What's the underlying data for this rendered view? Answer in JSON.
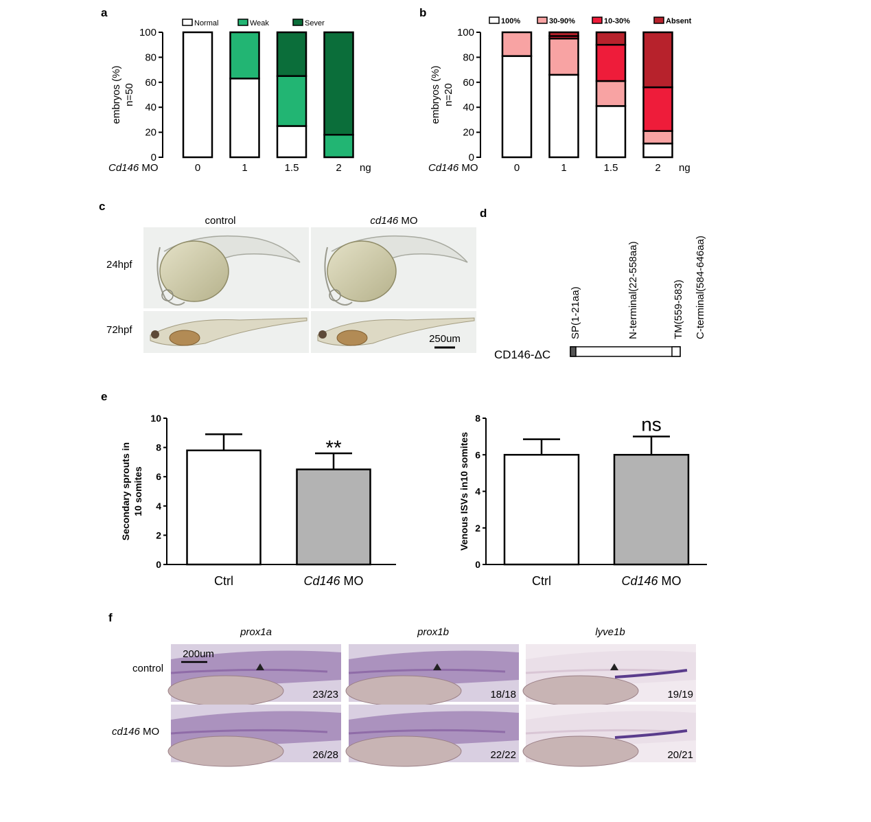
{
  "panels": {
    "a": "a",
    "b": "b",
    "c": "c",
    "d": "d",
    "e": "e",
    "f": "f"
  },
  "chart_data": [
    {
      "id": "a",
      "type": "bar",
      "stacked": true,
      "ylabel": [
        "embryos (%)",
        "n=50"
      ],
      "categories": [
        "0",
        "1",
        "1.5",
        "2"
      ],
      "xprefix_italic": "Cd146",
      "xprefix": " MO",
      "xunit": "ng",
      "ylim": [
        0,
        100
      ],
      "yticks": [
        0,
        20,
        40,
        60,
        80,
        100
      ],
      "legend": {
        "position": "top",
        "items": [
          {
            "name": "Normal",
            "color": "#ffffff"
          },
          {
            "name": "Weak",
            "color": "#22b573"
          },
          {
            "name": "Sever",
            "color": "#0b6e3a"
          }
        ]
      },
      "series": [
        {
          "name": "Normal",
          "values": [
            100,
            63,
            25,
            0
          ]
        },
        {
          "name": "Weak",
          "values": [
            0,
            37,
            40,
            18
          ]
        },
        {
          "name": "Sever",
          "values": [
            0,
            0,
            35,
            82
          ]
        }
      ]
    },
    {
      "id": "b",
      "type": "bar",
      "stacked": true,
      "ylabel": [
        "embryos (%)",
        "n=20"
      ],
      "categories": [
        "0",
        "1",
        "1.5",
        "2"
      ],
      "xprefix_italic": "Cd146",
      "xprefix": " MO",
      "xunit": "ng",
      "ylim": [
        0,
        100
      ],
      "yticks": [
        0,
        20,
        40,
        60,
        80,
        100
      ],
      "legend": {
        "position": "top",
        "items": [
          {
            "name": "100%",
            "color": "#ffffff"
          },
          {
            "name": "30-90%",
            "color": "#f8a3a3"
          },
          {
            "name": "10-30%",
            "color": "#ee1c3a"
          },
          {
            "name": "Absent",
            "color": "#b7222c"
          }
        ]
      },
      "series": [
        {
          "name": "100%",
          "values": [
            81,
            66,
            41,
            11
          ]
        },
        {
          "name": "30-90%",
          "values": [
            19,
            29,
            20,
            10
          ]
        },
        {
          "name": "10-30%",
          "values": [
            0,
            2,
            29,
            35
          ]
        },
        {
          "name": "Absent",
          "values": [
            0,
            3,
            10,
            44
          ]
        }
      ]
    },
    {
      "id": "e1",
      "type": "bar",
      "ylabel": [
        "Secondary sprouts in",
        "10 somites"
      ],
      "categories": [
        "Ctrl",
        "Cd146 MO"
      ],
      "category_parts": [
        [
          "",
          "Ctrl"
        ],
        [
          "Cd146",
          " MO"
        ]
      ],
      "values": [
        7.8,
        6.5
      ],
      "errors": [
        1.1,
        1.1
      ],
      "colors": [
        "#ffffff",
        "#b3b3b3"
      ],
      "ylim": [
        0,
        10
      ],
      "yticks": [
        0,
        2,
        4,
        6,
        8,
        10
      ],
      "significance": [
        "",
        "**"
      ]
    },
    {
      "id": "e2",
      "type": "bar",
      "ylabel": [
        "Venous ISVs in10 somites"
      ],
      "categories": [
        "Ctrl",
        "Cd146 MO"
      ],
      "category_parts": [
        [
          "",
          "Ctrl"
        ],
        [
          "Cd146",
          " MO"
        ]
      ],
      "values": [
        6.0,
        6.0
      ],
      "errors": [
        0.85,
        1.0
      ],
      "colors": [
        "#ffffff",
        "#b3b3b3"
      ],
      "ylim": [
        0,
        8
      ],
      "yticks": [
        0,
        2,
        4,
        6,
        8
      ],
      "significance": [
        "",
        "ns"
      ]
    }
  ],
  "panel_c": {
    "columns": [
      {
        "label": "control"
      },
      {
        "label_italic": "cd146",
        "label": " MO"
      }
    ],
    "rows": [
      "24hpf",
      "72hpf"
    ],
    "scale_bar": "250um"
  },
  "panel_d": {
    "construct": "CD146-ΔC",
    "domains": [
      "SP(1-21aa)",
      "N-terminal(22-558aa)",
      "TM(559-583)",
      "C-terminal(584-646aa)"
    ]
  },
  "panel_f": {
    "genes": [
      "prox1a",
      "prox1b",
      "lyve1b"
    ],
    "rows": [
      {
        "label": "control"
      },
      {
        "label_italic": "cd146",
        "label": " MO"
      }
    ],
    "scale_bar": "200um",
    "counts": [
      [
        "23/23",
        "18/18",
        "19/19"
      ],
      [
        "26/28",
        "22/22",
        "20/21"
      ]
    ]
  }
}
